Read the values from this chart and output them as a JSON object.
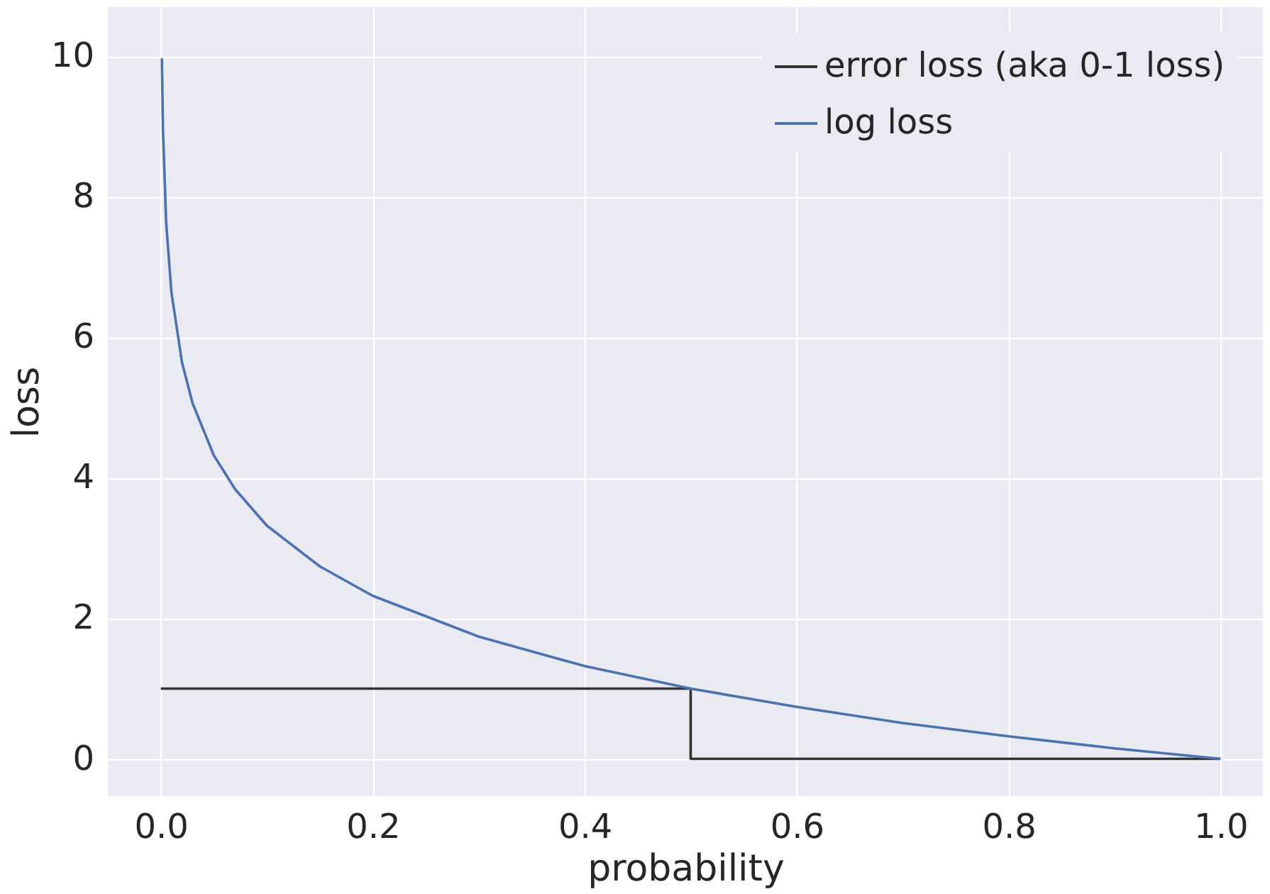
{
  "chart_data": {
    "type": "line",
    "xlabel": "probability",
    "ylabel": "loss",
    "xlim": [
      -0.05,
      1.04
    ],
    "ylim": [
      -0.53,
      10.7
    ],
    "xticks": [
      {
        "value": 0,
        "label": "0.0"
      },
      {
        "value": 0.2,
        "label": "0.2"
      },
      {
        "value": 0.4,
        "label": "0.4"
      },
      {
        "value": 0.6,
        "label": "0.6"
      },
      {
        "value": 0.8,
        "label": "0.8"
      },
      {
        "value": 1,
        "label": "1.0"
      }
    ],
    "yticks": [
      0,
      2,
      4,
      6,
      8,
      10
    ],
    "grid": true,
    "legend": "top right",
    "line_style": "solid",
    "marker": "none",
    "series": [
      {
        "name": "error loss (aka 0-1 loss)",
        "color": "#333333",
        "x": [
          0,
          0.5,
          0.5,
          1
        ],
        "values": [
          1,
          1,
          0,
          0
        ]
      },
      {
        "name": "log loss",
        "color": "#4c72b0",
        "x": [
          0.001,
          0.002,
          0.005,
          0.01,
          0.02,
          0.03,
          0.05,
          0.07,
          0.1,
          0.15,
          0.2,
          0.3,
          0.4,
          0.5,
          0.6,
          0.7,
          0.8,
          0.9,
          1.0
        ],
        "values": [
          9.97,
          8.97,
          7.64,
          6.64,
          5.64,
          5.06,
          4.32,
          3.84,
          3.32,
          2.74,
          2.32,
          1.74,
          1.32,
          1.0,
          0.74,
          0.51,
          0.32,
          0.15,
          0
        ]
      }
    ]
  }
}
